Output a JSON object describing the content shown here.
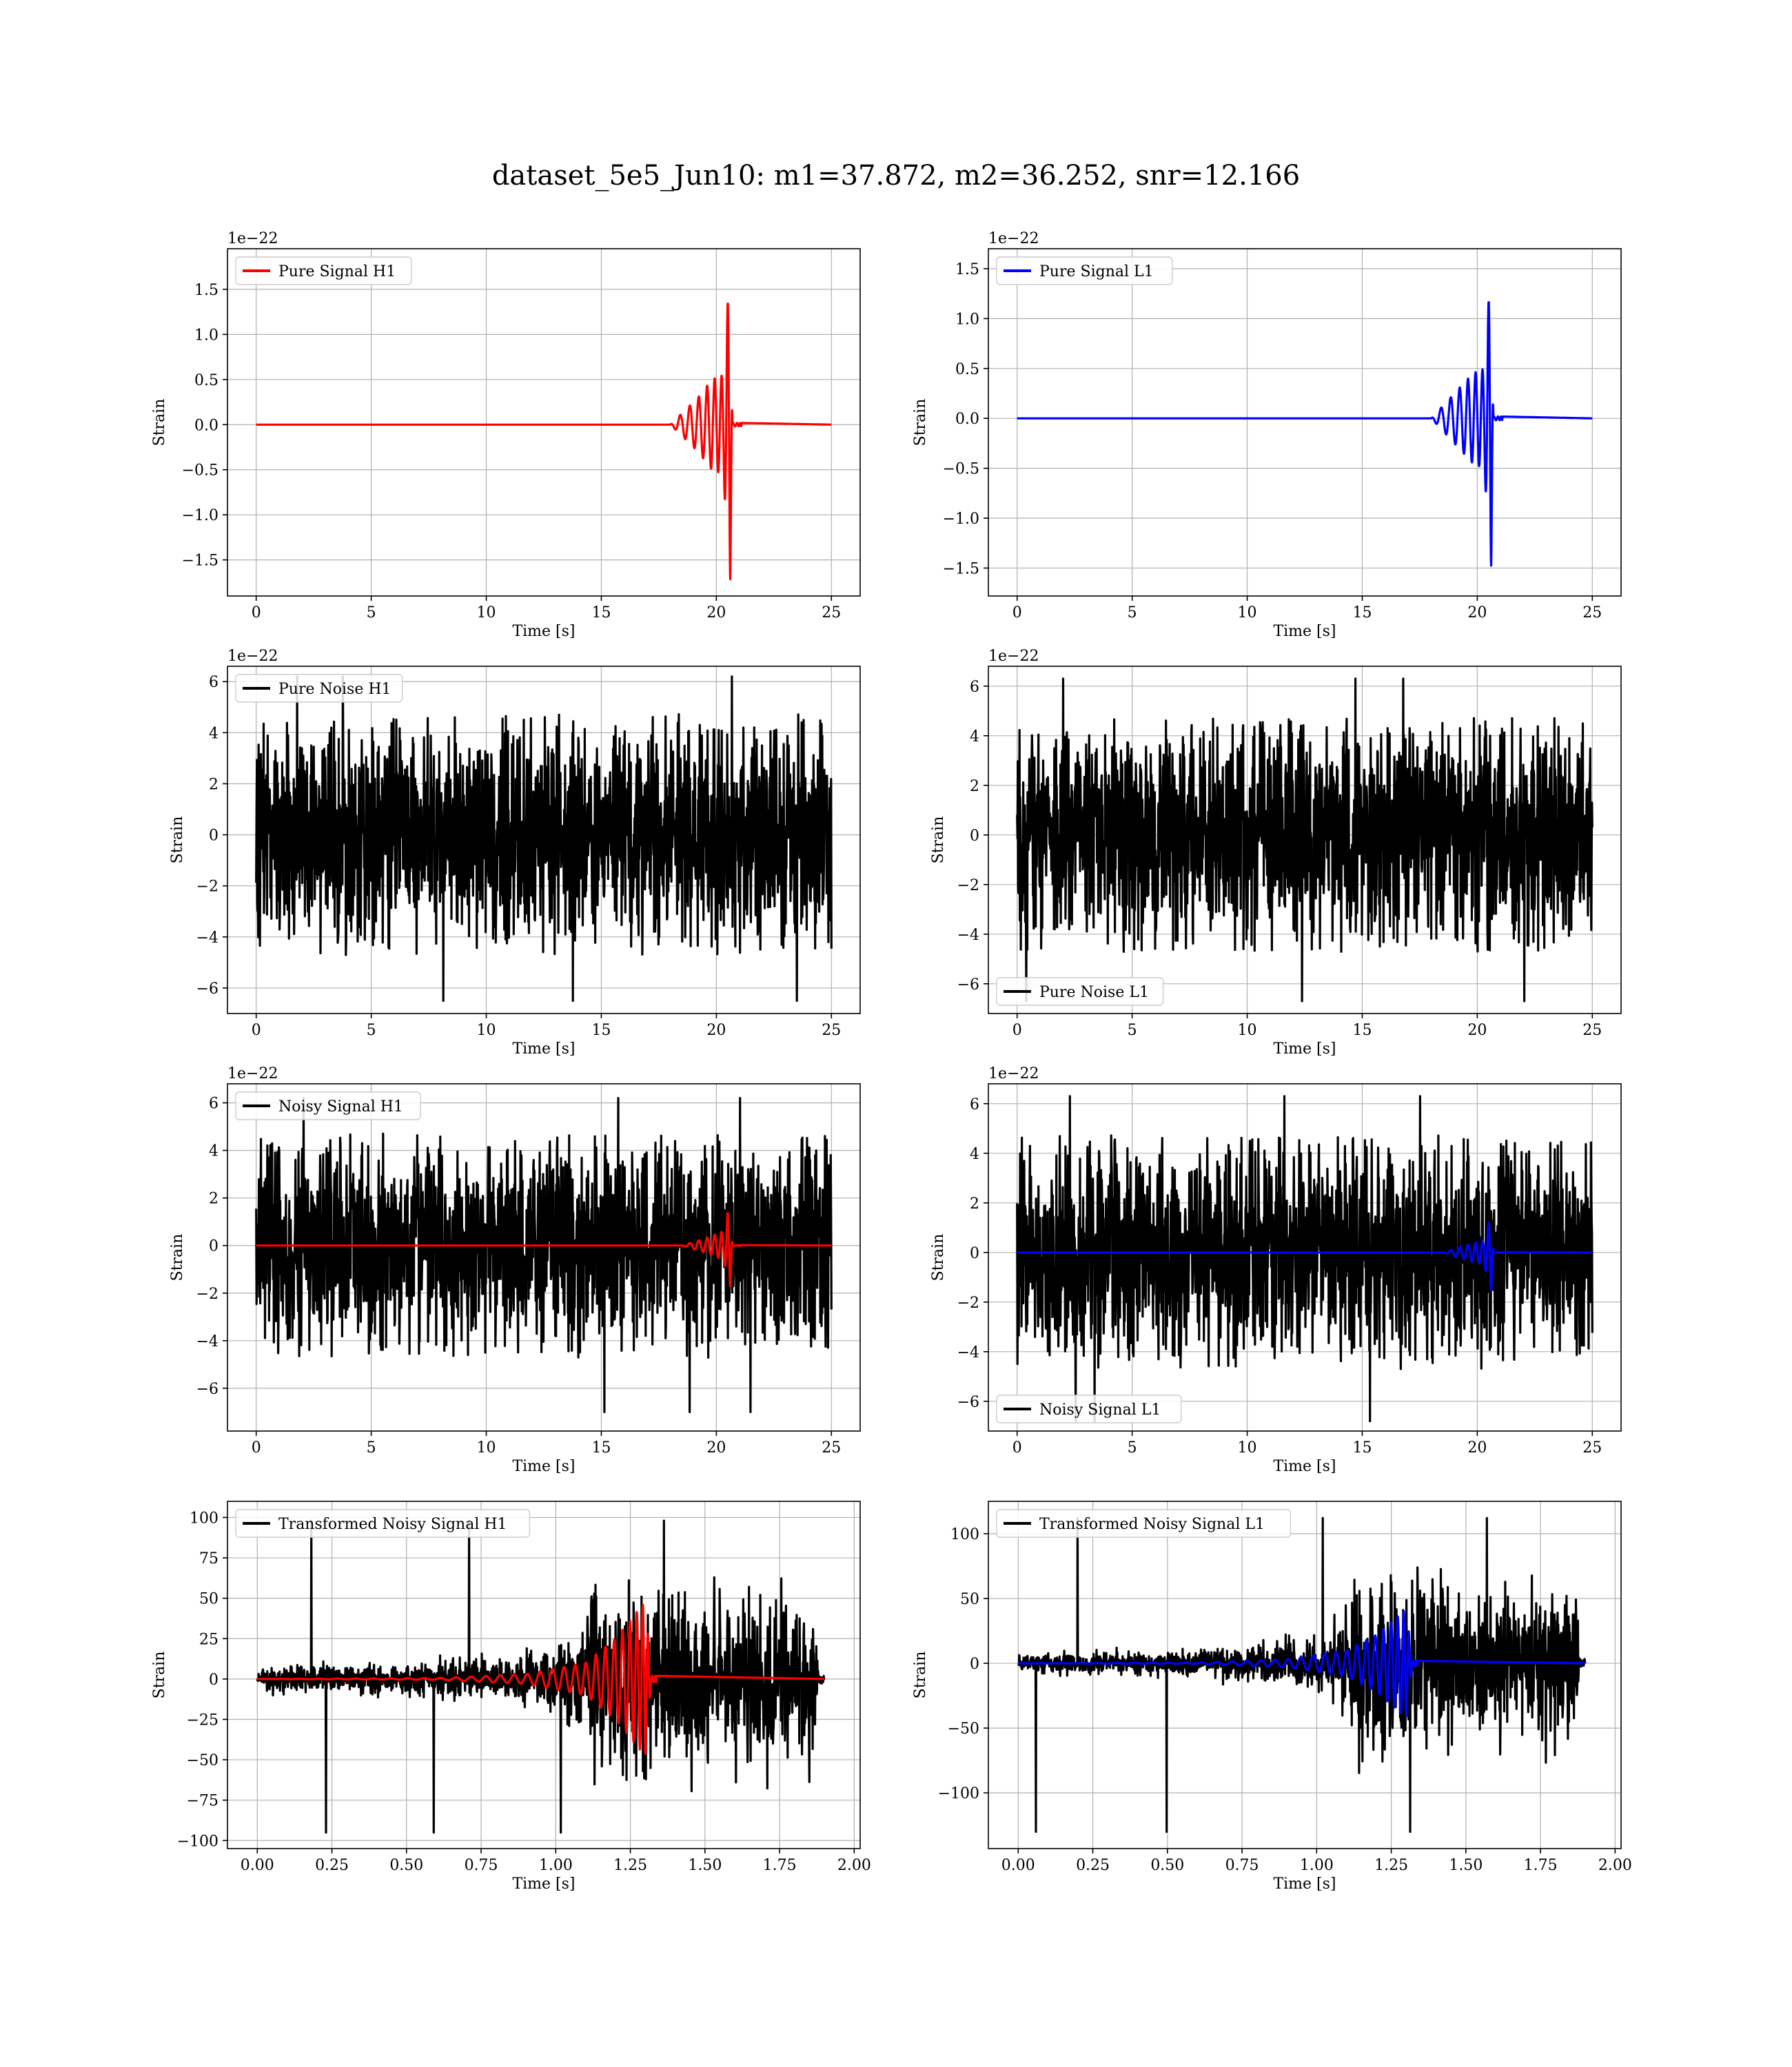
{
  "figure": {
    "title": "dataset_5e5_Jun10: m1=37.872, m2=36.252, snr=12.166"
  },
  "colors": {
    "h1_signal": "#ff0000",
    "l1_signal": "#0000ff",
    "noise": "#000000"
  },
  "chart_data": [
    {
      "type": "line",
      "id": "pure-signal-h1",
      "legend": "Pure Signal H1",
      "legend_loc": "upper-left",
      "xlabel": "Time [s]",
      "ylabel": "Strain",
      "offset_text": "1e−22",
      "xlim": [
        -1.25,
        26.25
      ],
      "ylim": [
        -1.9,
        1.95
      ],
      "xticks": [
        0,
        5,
        10,
        15,
        20,
        25
      ],
      "yticks": [
        -1.5,
        -1.0,
        -0.5,
        0.0,
        0.5,
        1.0,
        1.5
      ],
      "yticklabels": [
        "−1.5",
        "−1.0",
        "−0.5",
        "0.0",
        "0.5",
        "1.0",
        "1.5"
      ],
      "grid": true,
      "series": [
        {
          "legend": "Pure Signal H1",
          "color": "#ff0000",
          "kind": "chirp",
          "amplitude_envelope": [
            [
              0,
              0
            ],
            [
              18,
              0.0
            ],
            [
              19.2,
              0.3
            ],
            [
              19.8,
              0.5
            ],
            [
              20.3,
              0.55
            ],
            [
              20.6,
              1.8
            ],
            [
              20.7,
              0.02
            ],
            [
              25,
              0
            ]
          ]
        }
      ]
    },
    {
      "type": "line",
      "id": "pure-signal-l1",
      "legend": "Pure Signal L1",
      "legend_loc": "upper-left",
      "xlabel": "Time [s]",
      "ylabel": "Strain",
      "offset_text": "1e−22",
      "xlim": [
        -1.25,
        26.25
      ],
      "ylim": [
        -1.78,
        1.7
      ],
      "xticks": [
        0,
        5,
        10,
        15,
        20,
        25
      ],
      "yticks": [
        -1.5,
        -1.0,
        -0.5,
        0.0,
        0.5,
        1.0,
        1.5
      ],
      "yticklabels": [
        "−1.5",
        "−1.0",
        "−0.5",
        "0.0",
        "0.5",
        "1.0",
        "1.5"
      ],
      "grid": true,
      "series": [
        {
          "legend": "Pure Signal L1",
          "color": "#0000ff",
          "kind": "chirp",
          "amplitude_envelope": [
            [
              0,
              0
            ],
            [
              18,
              0.0
            ],
            [
              19.2,
              0.3
            ],
            [
              19.8,
              0.45
            ],
            [
              20.3,
              0.5
            ],
            [
              20.6,
              1.55
            ],
            [
              20.7,
              0.02
            ],
            [
              25,
              0
            ]
          ]
        }
      ]
    },
    {
      "type": "line",
      "id": "pure-noise-h1",
      "legend": "Pure Noise H1",
      "legend_loc": "upper-left",
      "xlabel": "Time [s]",
      "ylabel": "Strain",
      "offset_text": "1e−22",
      "xlim": [
        -1.25,
        26.25
      ],
      "ylim": [
        -7.0,
        6.6
      ],
      "xticks": [
        0,
        5,
        10,
        15,
        20,
        25
      ],
      "yticks": [
        -6,
        -4,
        -2,
        0,
        2,
        4,
        6
      ],
      "yticklabels": [
        "−6",
        "−4",
        "−2",
        "0",
        "2",
        "4",
        "6"
      ],
      "grid": true,
      "series": [
        {
          "legend": "Pure Noise H1",
          "color": "#000000",
          "kind": "noise",
          "x_range": [
            0,
            25
          ],
          "band": [
            -3.5,
            3.5
          ],
          "peak_max": 6.2,
          "peak_min": -6.5
        }
      ]
    },
    {
      "type": "line",
      "id": "pure-noise-l1",
      "legend": "Pure Noise L1",
      "legend_loc": "lower-left",
      "xlabel": "Time [s]",
      "ylabel": "Strain",
      "offset_text": "1e−22",
      "xlim": [
        -1.25,
        26.25
      ],
      "ylim": [
        -7.2,
        6.8
      ],
      "xticks": [
        0,
        5,
        10,
        15,
        20,
        25
      ],
      "yticks": [
        -6,
        -4,
        -2,
        0,
        2,
        4,
        6
      ],
      "yticklabels": [
        "−6",
        "−4",
        "−2",
        "0",
        "2",
        "4",
        "6"
      ],
      "grid": true,
      "series": [
        {
          "legend": "Pure Noise L1",
          "color": "#000000",
          "kind": "noise",
          "x_range": [
            0,
            25
          ],
          "band": [
            -3.5,
            3.5
          ],
          "peak_max": 6.3,
          "peak_min": -6.7
        }
      ]
    },
    {
      "type": "line",
      "id": "noisy-signal-h1",
      "legend": "Noisy Signal H1",
      "legend_loc": "upper-left",
      "xlabel": "Time [s]",
      "ylabel": "Strain",
      "offset_text": "1e−22",
      "xlim": [
        -1.25,
        26.25
      ],
      "ylim": [
        -7.8,
        6.8
      ],
      "xticks": [
        0,
        5,
        10,
        15,
        20,
        25
      ],
      "yticks": [
        -6,
        -4,
        -2,
        0,
        2,
        4,
        6
      ],
      "yticklabels": [
        "−6",
        "−4",
        "−2",
        "0",
        "2",
        "4",
        "6"
      ],
      "grid": true,
      "series": [
        {
          "legend": "Noisy Signal H1",
          "color": "#000000",
          "kind": "noise",
          "x_range": [
            0,
            25
          ],
          "band": [
            -3.5,
            3.5
          ],
          "peak_max": 6.2,
          "peak_min": -7.0
        },
        {
          "color": "#ff0000",
          "kind": "chirp",
          "amplitude_envelope": [
            [
              0,
              0
            ],
            [
              18.5,
              0.0
            ],
            [
              19.5,
              0.3
            ],
            [
              20.3,
              0.6
            ],
            [
              20.6,
              1.8
            ],
            [
              20.7,
              0.02
            ],
            [
              25,
              0
            ]
          ]
        }
      ]
    },
    {
      "type": "line",
      "id": "noisy-signal-l1",
      "legend": "Noisy Signal L1",
      "legend_loc": "lower-left",
      "xlabel": "Time [s]",
      "ylabel": "Strain",
      "offset_text": "1e−22",
      "xlim": [
        -1.25,
        26.25
      ],
      "ylim": [
        -7.2,
        6.8
      ],
      "xticks": [
        0,
        5,
        10,
        15,
        20,
        25
      ],
      "yticks": [
        -6,
        -4,
        -2,
        0,
        2,
        4,
        6
      ],
      "yticklabels": [
        "−6",
        "−4",
        "−2",
        "0",
        "2",
        "4",
        "6"
      ],
      "grid": true,
      "series": [
        {
          "legend": "Noisy Signal L1",
          "color": "#000000",
          "kind": "noise",
          "x_range": [
            0,
            25
          ],
          "band": [
            -3.5,
            3.5
          ],
          "peak_max": 6.3,
          "peak_min": -6.8
        },
        {
          "color": "#0000ff",
          "kind": "chirp",
          "amplitude_envelope": [
            [
              0,
              0
            ],
            [
              18.5,
              0.0
            ],
            [
              19.5,
              0.3
            ],
            [
              20.3,
              0.5
            ],
            [
              20.6,
              1.6
            ],
            [
              20.7,
              0.02
            ],
            [
              25,
              0
            ]
          ]
        }
      ]
    },
    {
      "type": "line",
      "id": "transformed-noisy-signal-h1",
      "legend": "Transformed Noisy Signal H1",
      "legend_loc": "upper-left",
      "xlabel": "Time [s]",
      "ylabel": "Strain",
      "xlim": [
        -0.1,
        2.02
      ],
      "ylim": [
        -105,
        110
      ],
      "xticks": [
        0.0,
        0.25,
        0.5,
        0.75,
        1.0,
        1.25,
        1.5,
        1.75,
        2.0
      ],
      "xticklabels": [
        "0.00",
        "0.25",
        "0.50",
        "0.75",
        "1.00",
        "1.25",
        "1.50",
        "1.75",
        "2.00"
      ],
      "yticks": [
        -100,
        -75,
        -50,
        -25,
        0,
        25,
        50,
        75,
        100
      ],
      "yticklabels": [
        "−100",
        "−75",
        "−50",
        "−25",
        "0",
        "25",
        "50",
        "75",
        "100"
      ],
      "grid": true,
      "series": [
        {
          "legend": "Transformed Noisy Signal H1",
          "color": "#000000",
          "kind": "noise-envelope",
          "x_range": [
            0,
            1.9
          ],
          "amplitude_envelope": [
            [
              0,
              8
            ],
            [
              0.5,
              10
            ],
            [
              0.8,
              15
            ],
            [
              1.0,
              22
            ],
            [
              1.1,
              35
            ],
            [
              1.12,
              60
            ],
            [
              1.35,
              60
            ],
            [
              1.5,
              55
            ],
            [
              1.87,
              55
            ],
            [
              1.88,
              5
            ],
            [
              1.9,
              5
            ]
          ],
          "peak_max": 98,
          "peak_min": -95
        },
        {
          "color": "#ff0000",
          "kind": "chirp",
          "amplitude_envelope": [
            [
              0,
              0
            ],
            [
              0.6,
              0.5
            ],
            [
              0.9,
              3
            ],
            [
              1.1,
              10
            ],
            [
              1.2,
              25
            ],
            [
              1.3,
              48
            ],
            [
              1.32,
              2
            ],
            [
              1.9,
              0
            ]
          ]
        }
      ]
    },
    {
      "type": "line",
      "id": "transformed-noisy-signal-l1",
      "legend": "Transformed Noisy Signal L1",
      "legend_loc": "upper-left",
      "xlabel": "Time [s]",
      "ylabel": "Strain",
      "xlim": [
        -0.1,
        2.02
      ],
      "ylim": [
        -143,
        125
      ],
      "xticks": [
        0.0,
        0.25,
        0.5,
        0.75,
        1.0,
        1.25,
        1.5,
        1.75,
        2.0
      ],
      "xticklabels": [
        "0.00",
        "0.25",
        "0.50",
        "0.75",
        "1.00",
        "1.25",
        "1.50",
        "1.75",
        "2.00"
      ],
      "yticks": [
        -100,
        -50,
        0,
        50,
        100
      ],
      "yticklabels": [
        "−100",
        "−50",
        "0",
        "50",
        "100"
      ],
      "grid": true,
      "series": [
        {
          "legend": "Transformed Noisy Signal L1",
          "color": "#000000",
          "kind": "noise-envelope",
          "x_range": [
            0,
            1.9
          ],
          "amplitude_envelope": [
            [
              0,
              8
            ],
            [
              0.5,
              10
            ],
            [
              0.8,
              15
            ],
            [
              1.0,
              22
            ],
            [
              1.1,
              40
            ],
            [
              1.12,
              70
            ],
            [
              1.35,
              70
            ],
            [
              1.5,
              60
            ],
            [
              1.87,
              60
            ],
            [
              1.88,
              5
            ],
            [
              1.9,
              5
            ]
          ],
          "peak_max": 112,
          "peak_min": -130
        },
        {
          "color": "#0000ff",
          "kind": "chirp",
          "amplitude_envelope": [
            [
              0,
              0
            ],
            [
              0.6,
              0.5
            ],
            [
              0.9,
              3
            ],
            [
              1.1,
              10
            ],
            [
              1.2,
              22
            ],
            [
              1.3,
              42
            ],
            [
              1.32,
              2
            ],
            [
              1.9,
              0
            ]
          ]
        }
      ]
    }
  ]
}
